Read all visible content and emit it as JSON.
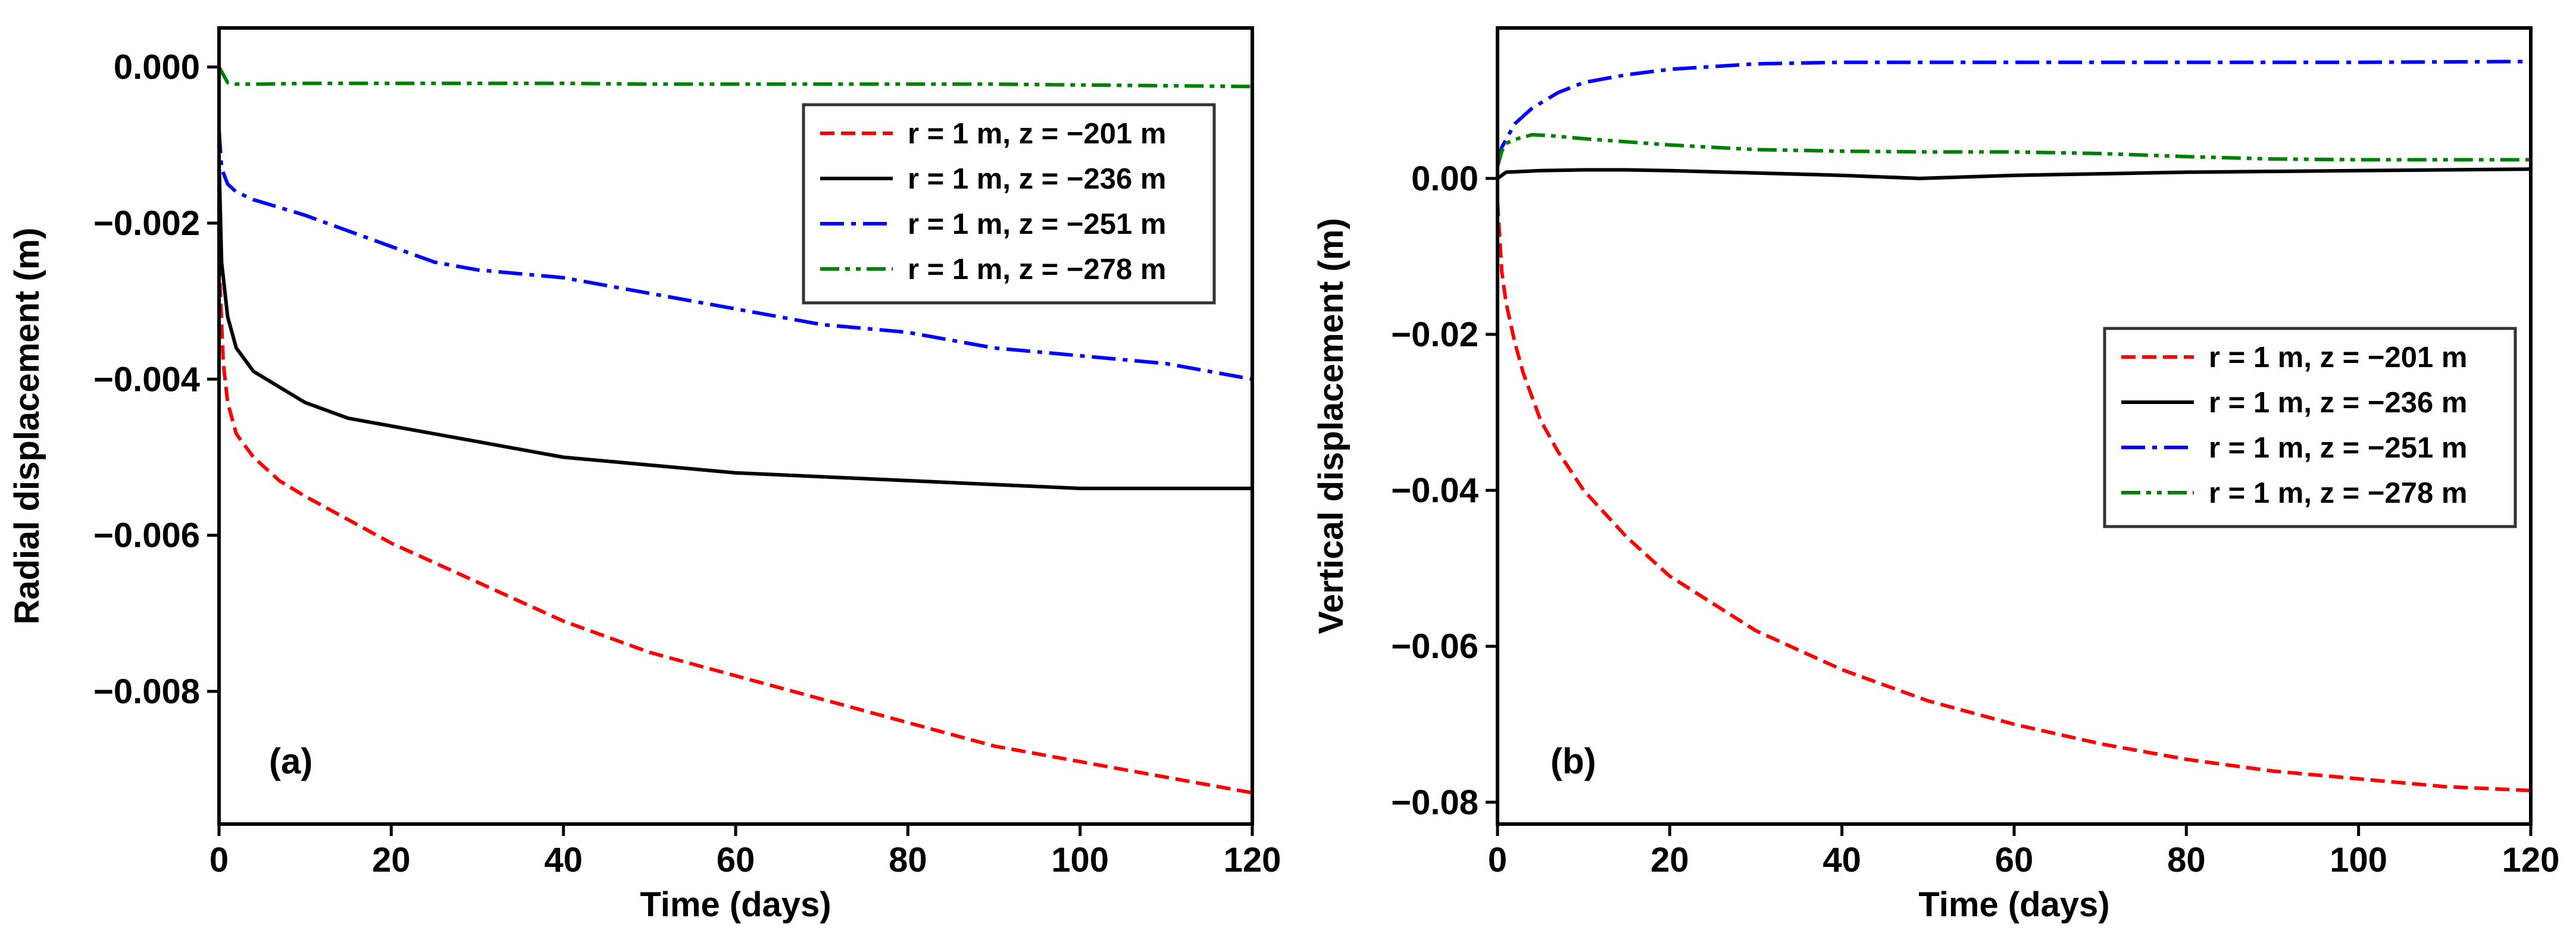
{
  "chart_data": [
    {
      "type": "line",
      "panel_label": "(a)",
      "xlabel": "Time (days)",
      "ylabel": "Radial displacement (m)",
      "xlim": [
        0,
        120
      ],
      "ylim": [
        -0.0097,
        0.0005
      ],
      "xticks": [
        0,
        20,
        40,
        60,
        80,
        100,
        120
      ],
      "xtick_labels": [
        "0",
        "20",
        "40",
        "60",
        "80",
        "100",
        "120"
      ],
      "yticks": [
        0.0,
        -0.002,
        -0.004,
        -0.006,
        -0.008
      ],
      "ytick_labels": [
        "0.000",
        "−0.002",
        "−0.004",
        "−0.006",
        "−0.008"
      ],
      "legend_position": "top-right",
      "series": [
        {
          "name": "r = 1 m, z = −201 m",
          "color": "#ff0000",
          "style": "dashed",
          "x": [
            0,
            0.5,
            1,
            2,
            4,
            7,
            10,
            15,
            20,
            30,
            40,
            50,
            60,
            70,
            80,
            90,
            100,
            110,
            120
          ],
          "y": [
            -0.0025,
            -0.0038,
            -0.0043,
            -0.0047,
            -0.005,
            -0.0053,
            -0.0055,
            -0.0058,
            -0.0061,
            -0.0066,
            -0.0071,
            -0.0075,
            -0.0078,
            -0.0081,
            -0.0084,
            -0.0087,
            -0.0089,
            -0.0091,
            -0.0093
          ]
        },
        {
          "name": "r = 1 m, z = −236 m",
          "color": "#000000",
          "style": "solid",
          "x": [
            0,
            0.3,
            1,
            2,
            4,
            7,
            10,
            15,
            20,
            30,
            40,
            50,
            60,
            70,
            80,
            90,
            100,
            110,
            120
          ],
          "y": [
            -0.0012,
            -0.0025,
            -0.0032,
            -0.0036,
            -0.0039,
            -0.0041,
            -0.0043,
            -0.0045,
            -0.0046,
            -0.0048,
            -0.005,
            -0.0051,
            -0.0052,
            -0.00525,
            -0.0053,
            -0.00535,
            -0.0054,
            -0.0054,
            -0.0054
          ]
        },
        {
          "name": "r = 1 m, z = −251 m",
          "color": "#0000ff",
          "style": "dashdot",
          "x": [
            0,
            0.3,
            1,
            2,
            4,
            7,
            10,
            15,
            20,
            25,
            30,
            40,
            50,
            60,
            70,
            80,
            90,
            100,
            110,
            120
          ],
          "y": [
            -0.0008,
            -0.0013,
            -0.0015,
            -0.0016,
            -0.0017,
            -0.0018,
            -0.0019,
            -0.0021,
            -0.0023,
            -0.0025,
            -0.0026,
            -0.0027,
            -0.0029,
            -0.0031,
            -0.0033,
            -0.0034,
            -0.0036,
            -0.0037,
            -0.0038,
            -0.004
          ]
        },
        {
          "name": "r = 1 m, z = −278 m",
          "color": "#008000",
          "style": "dashdotdot",
          "x": [
            0,
            0.5,
            1,
            2,
            5,
            10,
            20,
            30,
            40,
            50,
            60,
            70,
            80,
            90,
            100,
            110,
            120
          ],
          "y": [
            0.0,
            -0.0001,
            -0.0002,
            -0.00022,
            -0.00022,
            -0.00021,
            -0.00021,
            -0.00021,
            -0.00021,
            -0.00022,
            -0.00022,
            -0.00022,
            -0.00022,
            -0.00022,
            -0.00023,
            -0.00024,
            -0.00025
          ]
        }
      ]
    },
    {
      "type": "line",
      "panel_label": "(b)",
      "xlabel": "Time (days)",
      "ylabel": "Vertical displacement (m)",
      "xlim": [
        0,
        120
      ],
      "ylim": [
        -0.0828,
        0.0193
      ],
      "xticks": [
        0,
        20,
        40,
        60,
        80,
        100,
        120
      ],
      "xtick_labels": [
        "0",
        "20",
        "40",
        "60",
        "80",
        "100",
        "120"
      ],
      "yticks": [
        0.0,
        -0.02,
        -0.04,
        -0.06,
        -0.08
      ],
      "ytick_labels": [
        "0.00",
        "−0.02",
        "−0.04",
        "−0.06",
        "−0.08"
      ],
      "legend_position": "center-right",
      "series": [
        {
          "name": "r = 1 m, z = −201 m",
          "color": "#ff0000",
          "style": "dashed",
          "x": [
            0,
            0.5,
            1,
            2,
            3,
            5,
            7,
            10,
            15,
            20,
            30,
            40,
            50,
            60,
            70,
            80,
            90,
            100,
            110,
            120
          ],
          "y": [
            -0.003,
            -0.012,
            -0.016,
            -0.021,
            -0.025,
            -0.031,
            -0.035,
            -0.04,
            -0.046,
            -0.051,
            -0.058,
            -0.063,
            -0.067,
            -0.07,
            -0.0725,
            -0.0745,
            -0.076,
            -0.077,
            -0.078,
            -0.0785
          ]
        },
        {
          "name": "r = 1 m, z = −236 m",
          "color": "#000000",
          "style": "solid",
          "x": [
            0,
            1,
            5,
            10,
            15,
            20,
            30,
            40,
            49,
            60,
            70,
            80,
            90,
            100,
            110,
            120
          ],
          "y": [
            0.0,
            0.0008,
            0.001,
            0.0011,
            0.0011,
            0.001,
            0.0007,
            0.0004,
            0.0,
            0.0004,
            0.0006,
            0.0008,
            0.0009,
            0.001,
            0.0011,
            0.0012
          ]
        },
        {
          "name": "r = 1 m, z = −251 m",
          "color": "#0000ff",
          "style": "dashdot",
          "x": [
            0,
            0.5,
            1,
            2,
            4,
            7,
            10,
            15,
            20,
            30,
            40,
            60,
            80,
            100,
            120
          ],
          "y": [
            0.002,
            0.004,
            0.005,
            0.007,
            0.009,
            0.011,
            0.0123,
            0.0133,
            0.014,
            0.0147,
            0.0149,
            0.0149,
            0.0149,
            0.0149,
            0.015
          ]
        },
        {
          "name": "r = 1 m, z = −278 m",
          "color": "#008000",
          "style": "dashdotdot",
          "x": [
            0,
            0.5,
            1,
            2,
            4,
            6,
            10,
            20,
            30,
            40,
            50,
            60,
            70,
            80,
            90,
            100,
            110,
            120
          ],
          "y": [
            0.0015,
            0.0035,
            0.0045,
            0.005,
            0.0056,
            0.0055,
            0.0051,
            0.0043,
            0.0037,
            0.0035,
            0.0034,
            0.0034,
            0.0032,
            0.0028,
            0.0025,
            0.0024,
            0.0024,
            0.0024
          ]
        }
      ]
    }
  ]
}
